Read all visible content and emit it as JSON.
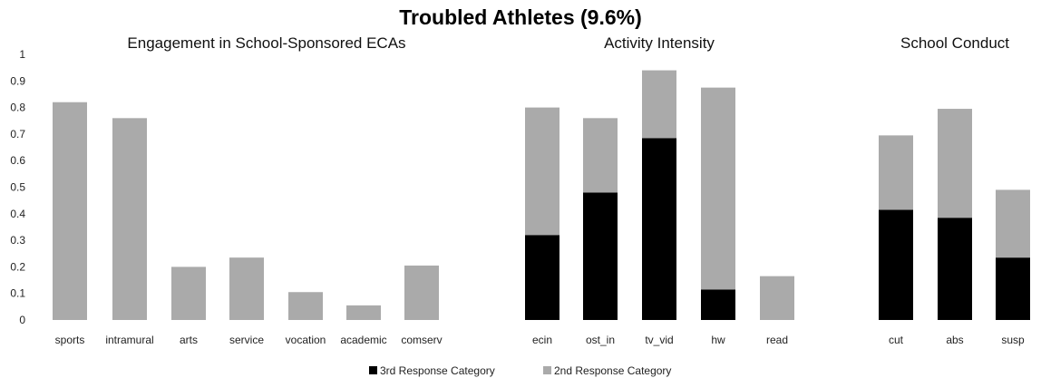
{
  "chart_data": {
    "type": "bar",
    "stacked": true,
    "title": "Troubled Athletes (9.6%)",
    "ylim": [
      0,
      1
    ],
    "yticks": [
      "0",
      "0.1",
      "0.2",
      "0.3",
      "0.4",
      "0.5",
      "0.6",
      "0.7",
      "0.8",
      "0.9",
      "1"
    ],
    "grid": false,
    "legend_position": "bottom",
    "groups": [
      {
        "title": "Engagement in School-Sponsored ECAs",
        "categories": [
          "sports",
          "intramural",
          "arts",
          "service",
          "vocation",
          "academic",
          "comserv"
        ],
        "third": [
          0,
          0,
          0,
          0,
          0,
          0,
          0
        ],
        "second": [
          0.82,
          0.76,
          0.2,
          0.235,
          0.105,
          0.055,
          0.205
        ]
      },
      {
        "title": "Activity Intensity",
        "categories": [
          "ecin",
          "ost_in",
          "tv_vid",
          "hw",
          "read"
        ],
        "third": [
          0.32,
          0.48,
          0.685,
          0.115,
          0
        ],
        "second": [
          0.48,
          0.28,
          0.255,
          0.76,
          0.165
        ]
      },
      {
        "title": "School Conduct",
        "categories": [
          "cut",
          "abs",
          "susp"
        ],
        "third": [
          0.415,
          0.385,
          0.235
        ],
        "second": [
          0.28,
          0.41,
          0.255
        ]
      }
    ],
    "series": [
      {
        "name": "3rd Response Category",
        "color": "#000000"
      },
      {
        "name": "2nd Response Category",
        "color": "#aaaaaa"
      }
    ]
  }
}
